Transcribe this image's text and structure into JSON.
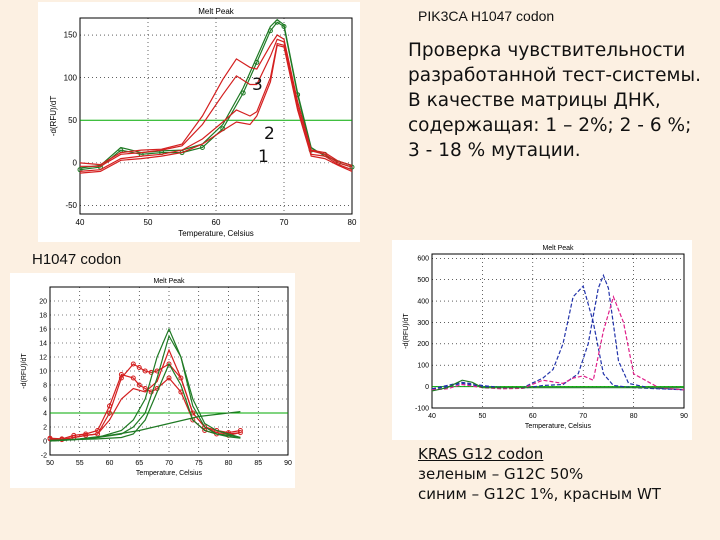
{
  "slide": {
    "title": "PIK3CA H1047 codon",
    "description": "Проверка чувствительности разработанной тест-системы. В качестве матрицы ДНК, содержащая: 1 – 2%;  2 - 6 %; 3 - 18 % мутации.",
    "sublabel": "H1047 codon",
    "caption_title": "KRAS  G12 codon",
    "caption_line1": "зеленым – G12C 50%",
    "caption_line2": "синим – G12C 1%, красным WT",
    "markers": [
      "3",
      "2",
      "1"
    ]
  },
  "colors": {
    "background": "#fcf0e2",
    "red": "#d42020",
    "green": "#1f7a24",
    "blue": "#2233aa",
    "magenta": "#e0208a",
    "ref": "#00aa00"
  },
  "chart_data": [
    {
      "type": "line",
      "title": "Melt Peak",
      "xlabel": "Temperature, Celsius",
      "ylabel": "-d(RFU)/dT",
      "xlim": [
        40,
        80
      ],
      "ylim": [
        -60,
        170
      ],
      "xticks": [
        "40",
        "50",
        "60",
        "70",
        "80"
      ],
      "yticks": [
        "-50",
        "0",
        "50",
        "100",
        "150"
      ],
      "threshold": 50,
      "series": [
        {
          "color": "green",
          "style": "marker",
          "x": [
            40,
            43,
            46,
            49,
            52,
            55,
            58,
            61,
            64,
            66,
            68,
            69,
            70,
            72,
            74,
            76,
            78,
            80
          ],
          "y": [
            -8,
            -5,
            15,
            10,
            12,
            12,
            18,
            40,
            82,
            118,
            155,
            165,
            160,
            80,
            15,
            10,
            0,
            -5
          ]
        },
        {
          "color": "green",
          "style": "solid",
          "x": [
            40,
            43,
            46,
            49,
            52,
            55,
            58,
            61,
            64,
            66,
            68,
            69,
            70,
            72,
            74,
            76,
            78,
            80
          ],
          "y": [
            -6,
            -3,
            18,
            12,
            14,
            15,
            22,
            45,
            88,
            124,
            160,
            168,
            162,
            82,
            18,
            8,
            2,
            -3
          ]
        },
        {
          "color": "red",
          "style": "solid",
          "x": [
            40,
            43,
            46,
            49,
            52,
            55,
            58,
            61,
            63,
            65,
            66,
            68,
            69,
            70,
            72,
            74,
            76,
            78,
            80
          ],
          "y": [
            0,
            -2,
            12,
            15,
            16,
            22,
            55,
            98,
            122,
            112,
            110,
            138,
            150,
            145,
            72,
            15,
            12,
            2,
            -3
          ]
        },
        {
          "color": "red",
          "style": "solid",
          "x": [
            40,
            43,
            46,
            49,
            52,
            55,
            58,
            61,
            63,
            65,
            66,
            68,
            69,
            70,
            72,
            74,
            76,
            78,
            80
          ],
          "y": [
            -4,
            -4,
            10,
            12,
            15,
            20,
            45,
            80,
            102,
            92,
            92,
            125,
            145,
            142,
            70,
            14,
            10,
            0,
            -5
          ]
        },
        {
          "color": "red",
          "style": "solid",
          "x": [
            40,
            43,
            46,
            49,
            52,
            55,
            58,
            61,
            63,
            65,
            66,
            68,
            69,
            70,
            72,
            74,
            76,
            78,
            80
          ],
          "y": [
            -10,
            -8,
            5,
            8,
            10,
            15,
            28,
            48,
            62,
            55,
            60,
            100,
            140,
            138,
            65,
            10,
            8,
            -2,
            -8
          ]
        },
        {
          "color": "red",
          "style": "solid",
          "x": [
            40,
            43,
            46,
            49,
            52,
            55,
            58,
            61,
            63,
            65,
            66,
            68,
            69,
            70,
            72,
            74,
            76,
            78,
            80
          ],
          "y": [
            -12,
            -10,
            3,
            5,
            8,
            12,
            22,
            38,
            48,
            45,
            55,
            95,
            138,
            136,
            62,
            8,
            5,
            -3,
            -10
          ]
        }
      ]
    },
    {
      "type": "line",
      "title": "Melt Peak",
      "xlabel": "Temperature, Celsius",
      "ylabel": "-d(RFU)/dT",
      "xlim": [
        40,
        90
      ],
      "ylim": [
        -100,
        620
      ],
      "xticks": [
        "40",
        "50",
        "60",
        "70",
        "80",
        "90"
      ],
      "yticks": [
        "-100",
        "0",
        "100",
        "200",
        "300",
        "400",
        "500",
        "600"
      ],
      "threshold": 0,
      "series": [
        {
          "color": "blue",
          "style": "dashed",
          "x": [
            40,
            43,
            46,
            50,
            54,
            58,
            62,
            64,
            66,
            68,
            70,
            72,
            74,
            76,
            80,
            85,
            90
          ],
          "y": [
            -10,
            5,
            20,
            5,
            -5,
            -5,
            40,
            80,
            200,
            420,
            470,
            300,
            60,
            5,
            -5,
            -10,
            -15
          ]
        },
        {
          "color": "blue",
          "style": "dashed",
          "x": [
            40,
            43,
            46,
            50,
            54,
            58,
            62,
            66,
            69,
            71,
            73,
            74,
            75,
            77,
            79,
            83,
            90
          ],
          "y": [
            -12,
            0,
            15,
            0,
            -8,
            -8,
            5,
            10,
            60,
            200,
            460,
            520,
            460,
            120,
            15,
            -5,
            -15
          ]
        },
        {
          "color": "magenta",
          "style": "dashed",
          "x": [
            40,
            43,
            46,
            50,
            54,
            58,
            62,
            66,
            68,
            70,
            72,
            74,
            76,
            78,
            80,
            85,
            90
          ],
          "y": [
            -15,
            -10,
            10,
            -5,
            -10,
            -8,
            30,
            15,
            40,
            50,
            30,
            260,
            420,
            300,
            60,
            -5,
            -15
          ]
        },
        {
          "color": "green",
          "style": "solid",
          "x": [
            40,
            43,
            46,
            48,
            50,
            54,
            58,
            62,
            66,
            70,
            74,
            78,
            82,
            86,
            90
          ],
          "y": [
            -20,
            -5,
            30,
            20,
            -5,
            -5,
            -5,
            -5,
            -5,
            -5,
            -5,
            -5,
            -5,
            -5,
            -5
          ]
        }
      ]
    },
    {
      "type": "line",
      "title": "Melt Peak",
      "xlabel": "Temperature, Celsius",
      "ylabel": "-d(RFU)/dT",
      "xlim": [
        50,
        90
      ],
      "ylim": [
        -2,
        22
      ],
      "xticks": [
        "50",
        "55",
        "60",
        "65",
        "70",
        "75",
        "80",
        "85",
        "90"
      ],
      "yticks": [
        "-2",
        "0",
        "2",
        "4",
        "6",
        "8",
        "10",
        "12",
        "14",
        "16",
        "18",
        "20"
      ],
      "threshold": 4,
      "series": [
        {
          "color": "red",
          "style": "marker",
          "x": [
            50,
            52,
            54,
            56,
            58,
            60,
            62,
            64,
            65,
            66,
            67,
            68,
            70,
            72,
            74,
            76,
            78,
            80,
            82
          ],
          "y": [
            0.3,
            0.2,
            0.5,
            0.8,
            1,
            4,
            9,
            11,
            10.5,
            10,
            9.8,
            10,
            11,
            9,
            4,
            2,
            1.5,
            1.2,
            1.5
          ]
        },
        {
          "color": "red",
          "style": "marker",
          "x": [
            50,
            52,
            54,
            56,
            58,
            60,
            62,
            64,
            65,
            66,
            67,
            68,
            70,
            72,
            74,
            76,
            78,
            80,
            82
          ],
          "y": [
            0.4,
            0.3,
            0.8,
            1,
            1.5,
            5,
            9.5,
            9,
            8,
            7.5,
            7,
            7.5,
            9,
            7,
            3,
            1.5,
            1,
            0.8,
            1.2
          ]
        },
        {
          "color": "red",
          "style": "solid",
          "x": [
            50,
            52,
            54,
            56,
            58,
            60,
            62,
            64,
            66,
            68,
            70,
            72,
            74,
            76,
            78,
            80,
            82
          ],
          "y": [
            0.2,
            0.2,
            0.5,
            0.8,
            1,
            3,
            6,
            7.5,
            7,
            8.5,
            13,
            9,
            4,
            2,
            1.2,
            1,
            1.2
          ]
        },
        {
          "color": "green",
          "style": "solid",
          "x": [
            50,
            54,
            58,
            62,
            64,
            66,
            68,
            70,
            72,
            74,
            76,
            78,
            80,
            82
          ],
          "y": [
            0,
            0.2,
            0.5,
            1.5,
            3,
            6,
            12,
            16,
            12,
            6,
            2.5,
            1.5,
            1,
            0.5
          ]
        },
        {
          "color": "green",
          "style": "solid",
          "x": [
            50,
            54,
            58,
            62,
            64,
            66,
            68,
            70,
            72,
            74,
            76,
            78,
            80,
            82
          ],
          "y": [
            0,
            0.2,
            0.5,
            1,
            2,
            4,
            9,
            15,
            12,
            5,
            2,
            1,
            0.8,
            0.5
          ]
        },
        {
          "color": "green",
          "style": "solid",
          "x": [
            50,
            54,
            58,
            62,
            64,
            66,
            68,
            70,
            72,
            74,
            76,
            78,
            80,
            82
          ],
          "y": [
            0.1,
            0.2,
            0.3,
            0.5,
            1,
            3,
            7,
            11,
            8,
            3,
            1.5,
            1,
            0.6,
            0.4
          ]
        },
        {
          "color": "green",
          "style": "solid",
          "x": [
            50,
            55,
            60,
            65,
            70,
            75,
            80,
            82
          ],
          "y": [
            0,
            0.3,
            0.8,
            1.5,
            2.5,
            3.5,
            4,
            4.2
          ]
        }
      ]
    }
  ]
}
